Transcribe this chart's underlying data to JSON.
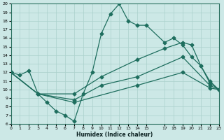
{
  "bg_color": "#cce8e6",
  "line_color": "#1e6e5e",
  "grid_color": "#aad0cc",
  "xlim": [
    0,
    23
  ],
  "ylim": [
    6,
    20
  ],
  "xtick_labels": [
    "0",
    "1",
    "2",
    "3",
    "4",
    "5",
    "6",
    "7",
    "8",
    "9",
    "10",
    "11",
    "12",
    "13",
    "14",
    "15",
    "17",
    "18",
    "19",
    "20",
    "21",
    "22",
    "23"
  ],
  "xtick_vals": [
    0,
    1,
    2,
    3,
    4,
    5,
    6,
    7,
    8,
    9,
    10,
    11,
    12,
    13,
    14,
    15,
    17,
    18,
    19,
    20,
    21,
    22,
    23
  ],
  "ytick_vals": [
    6,
    7,
    8,
    9,
    10,
    11,
    12,
    13,
    14,
    15,
    16,
    17,
    18,
    19,
    20
  ],
  "xlabel": "Humidex (Indice chaleur)",
  "line1_x": [
    0,
    1,
    2,
    3,
    4,
    5,
    6,
    7,
    8,
    9,
    10,
    11,
    12,
    13,
    14,
    15,
    17,
    18,
    19,
    20,
    21,
    22,
    23
  ],
  "line1_y": [
    12,
    11.7,
    12.2,
    9.5,
    8.5,
    7.5,
    7.0,
    6.3,
    9.5,
    12.0,
    16.5,
    18.8,
    20.0,
    18.0,
    17.5,
    17.5,
    15.5,
    16.0,
    15.2,
    13.8,
    12.8,
    10.8,
    10.0
  ],
  "line2_x": [
    0,
    3,
    7,
    10,
    14,
    17,
    19,
    20,
    21,
    22,
    23
  ],
  "line2_y": [
    12,
    9.5,
    9.5,
    11.5,
    13.5,
    14.8,
    15.5,
    15.2,
    12.8,
    11.0,
    10.0
  ],
  "line3_x": [
    0,
    3,
    7,
    10,
    14,
    19,
    22,
    23
  ],
  "line3_y": [
    12,
    9.5,
    8.8,
    10.5,
    11.5,
    13.8,
    10.5,
    10.0
  ],
  "line4_x": [
    0,
    3,
    7,
    14,
    19,
    22,
    23
  ],
  "line4_y": [
    12,
    9.5,
    8.5,
    10.5,
    12.0,
    10.2,
    10.0
  ]
}
